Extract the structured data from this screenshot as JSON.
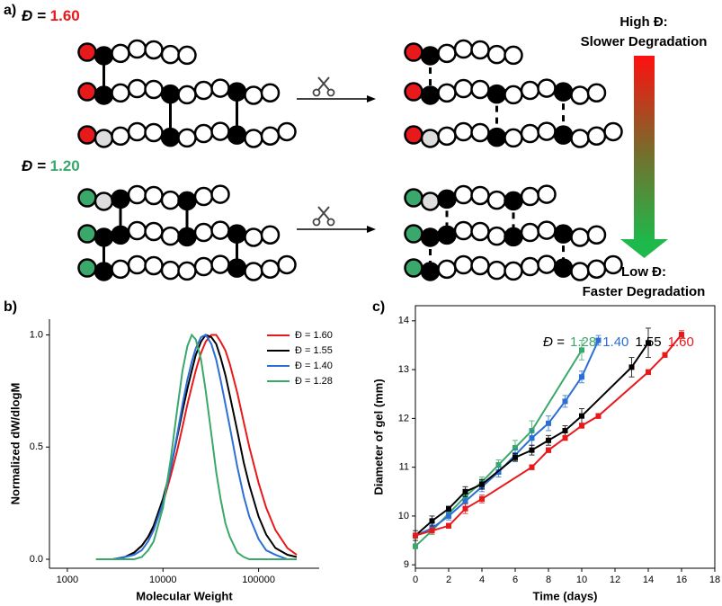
{
  "schematic": {
    "label": "a)",
    "groups": [
      {
        "prefix": "Đ = ",
        "value": "1.60"
      },
      {
        "prefix": "Đ = ",
        "value": "1.20"
      }
    ],
    "trend": {
      "high_label": "High Đ:",
      "high_text": "Slower Degradation",
      "low_label": "Low Đ:",
      "low_text": "Faster Degradation"
    }
  },
  "chart_data": [
    {
      "type": "line",
      "panel_label": "b)",
      "xlabel": "Molecular Weight",
      "ylabel": "Normalized dW/dlogM",
      "xscale": "log",
      "xlim": [
        650,
        430000
      ],
      "xticks": [
        1000,
        10000,
        100000
      ],
      "ylim": [
        -0.04,
        1.07
      ],
      "yticks": [
        {
          "value": 0,
          "label": "0.0"
        },
        {
          "value": 0.5,
          "label": "0.5"
        },
        {
          "value": 1,
          "label": "1.0"
        }
      ],
      "box": false,
      "legend": "upper right",
      "x": [
        2000,
        3000,
        4000,
        5000,
        6000,
        7000,
        8000,
        10000,
        12000,
        14000,
        16000,
        18000,
        20000,
        22000,
        25000,
        28000,
        32000,
        36000,
        40000,
        45000,
        50000,
        60000,
        70000,
        80000,
        100000,
        120000,
        150000,
        200000,
        250000
      ],
      "series": [
        {
          "name": "Đ = 1.60",
          "color": "#e8191b",
          "values": [
            0,
            0,
            0.01,
            0.03,
            0.06,
            0.1,
            0.14,
            0.25,
            0.37,
            0.48,
            0.59,
            0.69,
            0.77,
            0.84,
            0.92,
            0.97,
            1.0,
            1.0,
            0.97,
            0.93,
            0.87,
            0.74,
            0.61,
            0.5,
            0.34,
            0.23,
            0.13,
            0.05,
            0.02
          ]
        },
        {
          "name": "Đ = 1.55",
          "color": "#000000",
          "values": [
            0,
            0,
            0.01,
            0.03,
            0.06,
            0.1,
            0.15,
            0.27,
            0.4,
            0.54,
            0.66,
            0.76,
            0.84,
            0.91,
            0.97,
            1.0,
            0.99,
            0.96,
            0.9,
            0.82,
            0.73,
            0.57,
            0.43,
            0.33,
            0.19,
            0.11,
            0.05,
            0.02,
            0.01
          ]
        },
        {
          "name": "Đ = 1.40",
          "color": "#2b6fd6",
          "values": [
            0,
            0,
            0.01,
            0.02,
            0.04,
            0.08,
            0.13,
            0.25,
            0.4,
            0.55,
            0.69,
            0.8,
            0.88,
            0.94,
            0.99,
            1.0,
            0.96,
            0.89,
            0.8,
            0.69,
            0.59,
            0.41,
            0.28,
            0.19,
            0.09,
            0.04,
            0.02,
            0,
            0
          ]
        },
        {
          "name": "Đ = 1.28",
          "color": "#3aa86a",
          "values": [
            0,
            0,
            0,
            0,
            0.01,
            0.04,
            0.08,
            0.23,
            0.44,
            0.66,
            0.84,
            0.95,
            1.0,
            0.98,
            0.89,
            0.75,
            0.56,
            0.39,
            0.27,
            0.16,
            0.1,
            0.03,
            0.01,
            0,
            0,
            0,
            0,
            0,
            0
          ]
        }
      ]
    },
    {
      "type": "line",
      "panel_label": "c)",
      "xlabel": "Time (days)",
      "ylabel": "Diameter of gel (mm)",
      "xlim": [
        0,
        18
      ],
      "xticks": [
        0,
        2,
        4,
        6,
        8,
        10,
        12,
        14,
        16,
        18
      ],
      "ylim": [
        8.93,
        14.31
      ],
      "yticks": [
        9,
        10,
        11,
        12,
        13,
        14
      ],
      "box": true,
      "legend": "top",
      "legend_title": "Đ =",
      "marker": "square",
      "series": [
        {
          "name": "1.28",
          "color": "#3aa86a",
          "x": [
            0,
            1,
            2,
            3,
            4,
            5,
            6,
            7,
            10
          ],
          "values": [
            9.38,
            9.7,
            10.05,
            10.4,
            10.7,
            11.05,
            11.4,
            11.75,
            13.4
          ],
          "errors": [
            0.05,
            0.08,
            0.08,
            0.1,
            0.1,
            0.1,
            0.15,
            0.2,
            0.2
          ]
        },
        {
          "name": "1.40",
          "color": "#2b6fd6",
          "x": [
            0,
            1,
            2,
            3,
            4,
            5,
            6,
            7,
            8,
            9,
            10,
            11
          ],
          "values": [
            9.6,
            9.75,
            10.0,
            10.3,
            10.6,
            10.9,
            11.25,
            11.6,
            11.9,
            12.35,
            12.85,
            13.6
          ],
          "errors": [
            0.05,
            0.08,
            0.08,
            0.1,
            0.1,
            0.1,
            0.12,
            0.15,
            0.15,
            0.12,
            0.12,
            0.1
          ]
        },
        {
          "name": "1.55",
          "color": "#000000",
          "x": [
            0,
            1,
            2,
            3,
            4,
            6,
            7,
            8,
            9,
            10,
            13,
            14
          ],
          "values": [
            9.6,
            9.9,
            10.15,
            10.5,
            10.65,
            11.2,
            11.35,
            11.55,
            11.75,
            12.05,
            13.05,
            13.55
          ],
          "errors": [
            0.1,
            0.1,
            0.05,
            0.1,
            0.1,
            0.08,
            0.1,
            0.1,
            0.1,
            0.15,
            0.2,
            0.3
          ]
        },
        {
          "name": "1.60",
          "color": "#e8191b",
          "x": [
            0,
            1,
            2,
            3,
            4,
            7,
            8,
            9,
            10,
            11,
            14,
            15,
            16
          ],
          "values": [
            9.6,
            9.7,
            9.8,
            10.15,
            10.35,
            11.0,
            11.35,
            11.6,
            11.85,
            12.05,
            12.95,
            13.3,
            13.72
          ],
          "errors": [
            0.05,
            0.05,
            0.05,
            0.1,
            0.08,
            0.05,
            0.05,
            0.05,
            0.05,
            0.05,
            0.05,
            0.05,
            0.08
          ]
        }
      ]
    }
  ]
}
